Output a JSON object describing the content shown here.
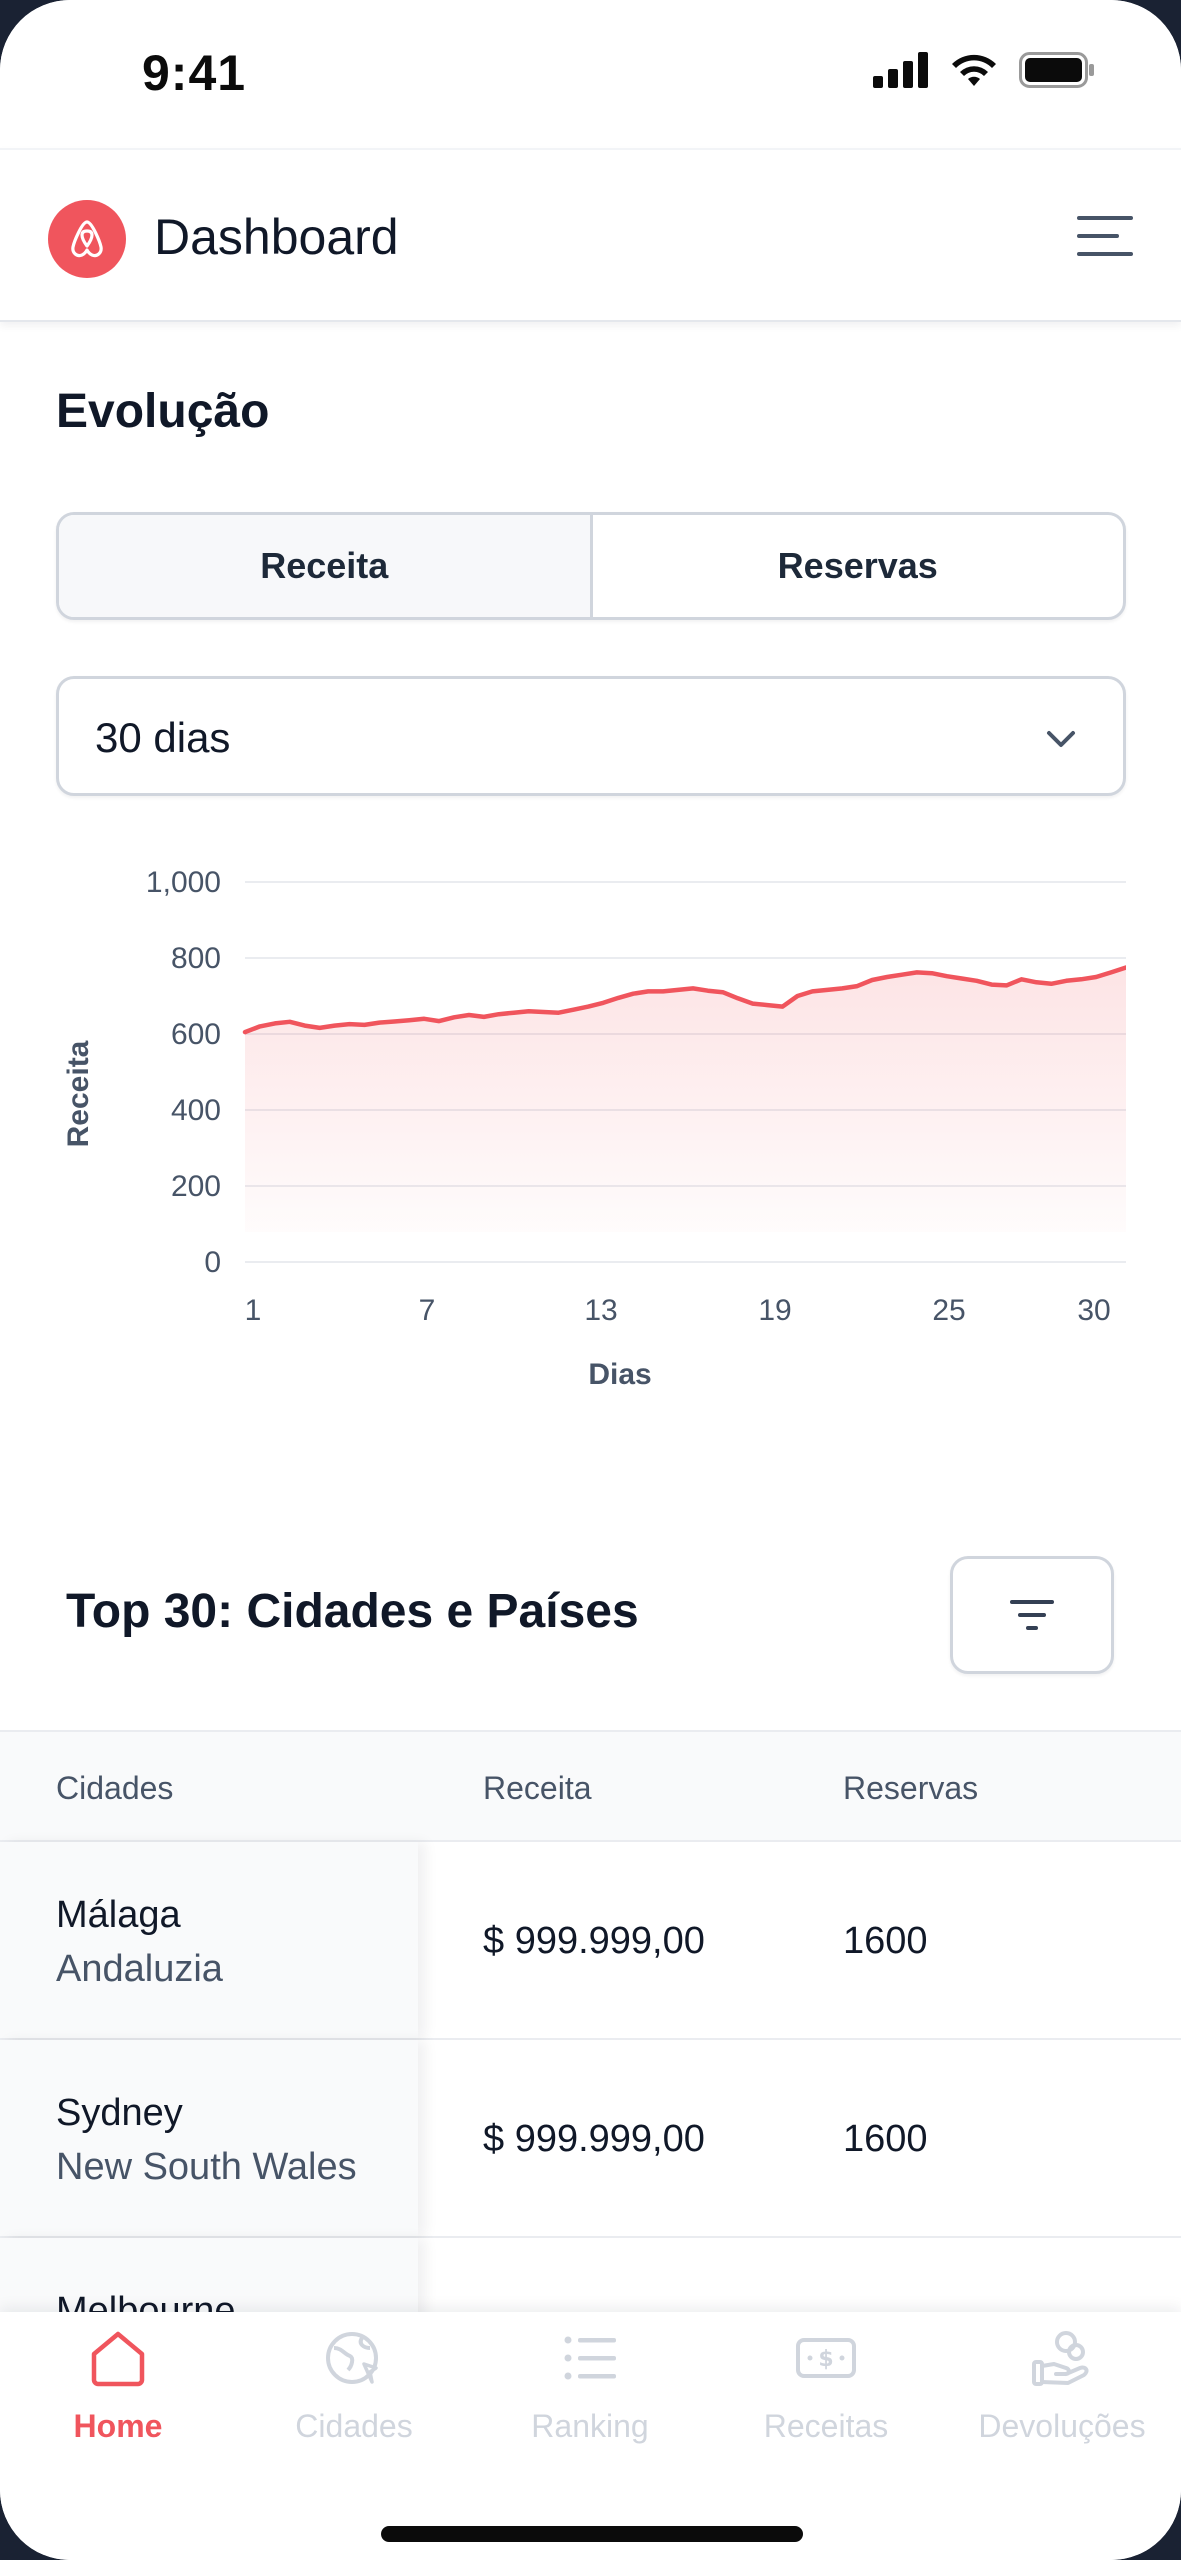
{
  "status_bar": {
    "time": "9:41"
  },
  "header": {
    "title": "Dashboard",
    "logo_icon": "airbnb-logo-icon",
    "menu_icon": "hamburger-menu-icon"
  },
  "evolution": {
    "title": "Evolução",
    "tabs": [
      {
        "label": "Receita",
        "active": true
      },
      {
        "label": "Reservas",
        "active": false
      }
    ],
    "period_select": {
      "value": "30 dias"
    }
  },
  "chart_data": {
    "type": "area",
    "title": "",
    "xlabel": "Dias",
    "ylabel": "Receita",
    "x_ticks": [
      "1",
      "7",
      "13",
      "19",
      "25",
      "30"
    ],
    "y_ticks": [
      "0",
      "200",
      "400",
      "600",
      "800",
      "1,000"
    ],
    "xlim": [
      1,
      30
    ],
    "ylim": [
      0,
      1000
    ],
    "grid": true,
    "color": "#f0555d",
    "x": [
      1,
      1.5,
      2,
      2.5,
      3,
      3.5,
      4,
      4.5,
      5,
      5.5,
      6,
      6.5,
      7,
      7.5,
      8,
      8.5,
      9,
      9.5,
      10,
      10.5,
      11,
      11.5,
      12,
      12.5,
      13,
      13.5,
      14,
      14.5,
      15,
      15.5,
      16,
      16.5,
      17,
      17.5,
      18,
      18.5,
      19,
      19.5,
      20,
      20.5,
      21,
      21.5,
      22,
      22.5,
      23,
      23.5,
      24,
      24.5,
      25,
      25.5,
      26,
      26.5,
      27,
      27.5,
      28,
      28.5,
      29,
      29.5,
      30,
      30.5
    ],
    "values": [
      605,
      620,
      628,
      632,
      622,
      616,
      622,
      626,
      624,
      630,
      633,
      636,
      640,
      634,
      644,
      650,
      645,
      652,
      656,
      660,
      658,
      656,
      664,
      672,
      682,
      695,
      706,
      712,
      712,
      716,
      720,
      714,
      710,
      694,
      680,
      676,
      672,
      700,
      712,
      716,
      720,
      726,
      742,
      750,
      756,
      762,
      760,
      752,
      746,
      740,
      730,
      728,
      744,
      736,
      732,
      740,
      744,
      750,
      762,
      775
    ]
  },
  "top_table": {
    "title": "Top 30: Cidades e Países",
    "filter_icon": "filter-lines-icon",
    "columns": [
      "Cidades",
      "Receita",
      "Reservas"
    ],
    "rows": [
      {
        "city": "Málaga",
        "region": "Andaluzia",
        "revenue": "$ 999.999,00",
        "bookings": "1600"
      },
      {
        "city": "Sydney",
        "region": "New South Wales",
        "revenue": "$ 999.999,00",
        "bookings": "1600"
      },
      {
        "city": "Melbourne",
        "region": "",
        "revenue": "",
        "bookings": ""
      }
    ]
  },
  "tabbar": {
    "items": [
      {
        "label": "Home",
        "icon": "home-icon",
        "active": true
      },
      {
        "label": "Cidades",
        "icon": "globe-icon",
        "active": false
      },
      {
        "label": "Ranking",
        "icon": "list-icon",
        "active": false
      },
      {
        "label": "Receitas",
        "icon": "money-icon",
        "active": false
      },
      {
        "label": "Devoluções",
        "icon": "hand-coins-icon",
        "active": false
      }
    ]
  },
  "colors": {
    "accent": "#f0555d",
    "text": "#101828",
    "muted": "#475467",
    "border": "#d0d5dd"
  }
}
